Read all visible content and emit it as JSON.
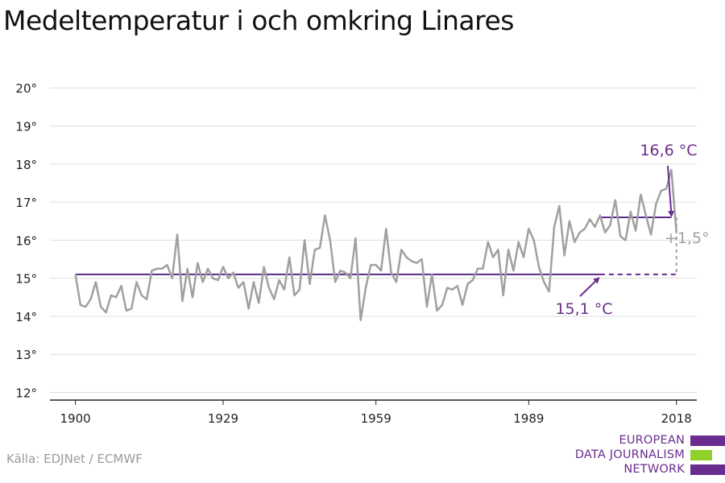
{
  "title": "Medeltemperatur i och omkring Linares",
  "source": "Källa: EDJNet / ECMWF",
  "logo": {
    "lines": [
      "EUROPEAN",
      "DATA JOURNALISM",
      "NETWORK"
    ]
  },
  "colors": {
    "series": "#a0a0a0",
    "reference": "#5b2a8a",
    "annotation": "#6a2c8e",
    "dashed": "#6a2c8e",
    "delta": "#a0a0a0",
    "grid": "#dddddd",
    "axis": "#222222",
    "logo_purple": "#6a2c8e",
    "logo_green": "#8fd12a"
  },
  "chart_data": {
    "type": "line",
    "title": "Medeltemperatur i och omkring Linares",
    "xlabel": "",
    "ylabel": "",
    "xlim": [
      1895,
      2022
    ],
    "ylim": [
      11.8,
      20.3
    ],
    "x_ticks": [
      1900,
      1929,
      1959,
      1989,
      2018
    ],
    "y_ticks": [
      12,
      13,
      14,
      15,
      16,
      17,
      18,
      19,
      20
    ],
    "y_tick_labels": [
      "12°",
      "13°",
      "14°",
      "15°",
      "16°",
      "17°",
      "18°",
      "19°",
      "20°"
    ],
    "grid": true,
    "series": [
      {
        "x_start": 1900,
        "values": [
          15.1,
          14.3,
          14.25,
          14.45,
          14.9,
          14.25,
          14.1,
          14.55,
          14.5,
          14.8,
          14.15,
          14.2,
          14.9,
          14.55,
          14.45,
          15.2,
          15.25,
          15.25,
          15.35,
          15.0,
          16.15,
          14.4,
          15.25,
          14.5,
          15.4,
          14.9,
          15.25,
          15.0,
          14.95,
          15.3,
          15.0,
          15.15,
          14.75,
          14.9,
          14.2,
          14.9,
          14.35,
          15.3,
          14.75,
          14.45,
          14.95,
          14.7,
          15.55,
          14.55,
          14.7,
          16.0,
          14.85,
          15.75,
          15.8,
          16.65,
          16.0,
          14.9,
          15.2,
          15.15,
          15.0,
          16.05,
          13.9,
          14.75,
          15.35,
          15.35,
          15.2,
          16.3,
          15.15,
          14.9,
          15.75,
          15.55,
          15.45,
          15.4,
          15.5,
          14.25,
          15.1,
          14.15,
          14.3,
          14.75,
          14.7,
          14.8,
          14.3,
          14.85,
          14.95,
          15.25,
          15.25,
          15.95,
          15.55,
          15.75,
          14.55,
          15.75,
          15.2,
          15.95,
          15.55,
          16.3,
          16.0,
          15.3,
          14.9,
          14.65,
          16.35,
          16.9,
          15.6,
          16.5,
          15.95,
          16.2,
          16.3,
          16.55,
          16.35,
          16.65,
          16.2,
          16.4,
          17.05,
          16.1,
          16.0,
          16.75,
          16.25,
          17.2,
          16.65,
          16.15,
          16.95,
          17.3,
          17.35,
          17.85,
          16.2
        ]
      }
    ],
    "reference_lines": [
      {
        "label": "15,1 °C",
        "value": 15.1,
        "from": 1900,
        "to": 2003
      },
      {
        "label": "16,6 °C",
        "value": 16.6,
        "from": 2003,
        "to": 2017
      }
    ],
    "delta_label": "+1,5°"
  }
}
